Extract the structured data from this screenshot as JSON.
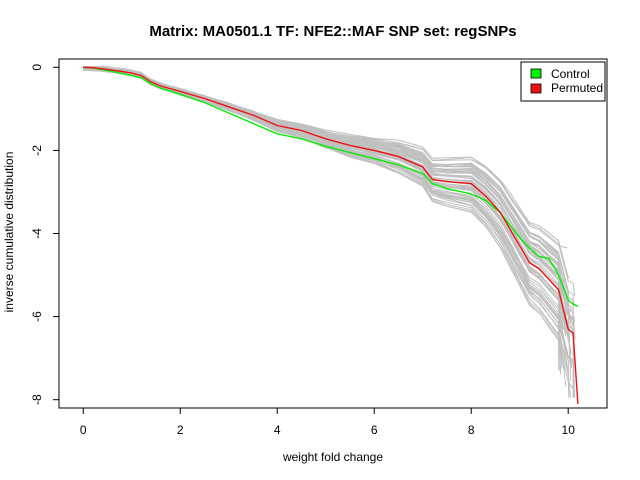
{
  "chart_data": {
    "type": "line",
    "title": "Matrix: MA0501.1 TF: NFE2::MAF SNP set: regSNPs",
    "xlabel": "weight fold change",
    "ylabel": "inverse cumulative distribution",
    "xlim": [
      -0.5,
      10.8
    ],
    "ylim": [
      -8.2,
      0.2
    ],
    "xticks": [
      0,
      2,
      4,
      6,
      8,
      10
    ],
    "yticks": [
      0,
      -2,
      -4,
      -6,
      -8
    ],
    "grid": false,
    "legend": {
      "position": "top-right"
    },
    "colors": {
      "control": "#00ee00",
      "permuted": "#ee1111",
      "background": "#c0c0c0"
    },
    "series": [
      {
        "name": "Control",
        "color": "#00ee00",
        "x": [
          0,
          0.2,
          0.5,
          0.8,
          1.0,
          1.2,
          1.4,
          1.6,
          2.0,
          2.5,
          3.0,
          3.5,
          4.0,
          4.5,
          5.0,
          5.5,
          6.0,
          6.5,
          7.0,
          7.2,
          7.5,
          8.0,
          8.3,
          8.6,
          8.8,
          9.0,
          9.2,
          9.4,
          9.6,
          9.8,
          10.0,
          10.1,
          10.2
        ],
        "y": [
          0,
          -0.02,
          -0.08,
          -0.15,
          -0.2,
          -0.25,
          -0.4,
          -0.5,
          -0.65,
          -0.85,
          -1.1,
          -1.35,
          -1.6,
          -1.72,
          -1.9,
          -2.05,
          -2.2,
          -2.35,
          -2.55,
          -2.8,
          -2.92,
          -3.05,
          -3.2,
          -3.5,
          -3.8,
          -4.1,
          -4.35,
          -4.55,
          -4.6,
          -5.0,
          -5.6,
          -5.7,
          -5.75
        ]
      },
      {
        "name": "Permuted",
        "color": "#ee1111",
        "x": [
          0,
          0.2,
          0.5,
          0.8,
          1.0,
          1.2,
          1.4,
          1.6,
          2.0,
          2.5,
          3.0,
          3.5,
          4.0,
          4.5,
          5.0,
          5.5,
          6.0,
          6.5,
          7.0,
          7.2,
          7.5,
          8.0,
          8.3,
          8.6,
          8.8,
          9.0,
          9.2,
          9.4,
          9.6,
          9.8,
          10.0,
          10.1,
          10.2
        ],
        "y": [
          0,
          -0.01,
          -0.05,
          -0.1,
          -0.14,
          -0.2,
          -0.35,
          -0.45,
          -0.58,
          -0.75,
          -0.95,
          -1.15,
          -1.4,
          -1.52,
          -1.72,
          -1.88,
          -2.0,
          -2.15,
          -2.4,
          -2.7,
          -2.75,
          -2.8,
          -3.1,
          -3.5,
          -3.9,
          -4.3,
          -4.7,
          -4.85,
          -5.1,
          -5.35,
          -6.3,
          -6.4,
          -8.1
        ]
      }
    ]
  }
}
